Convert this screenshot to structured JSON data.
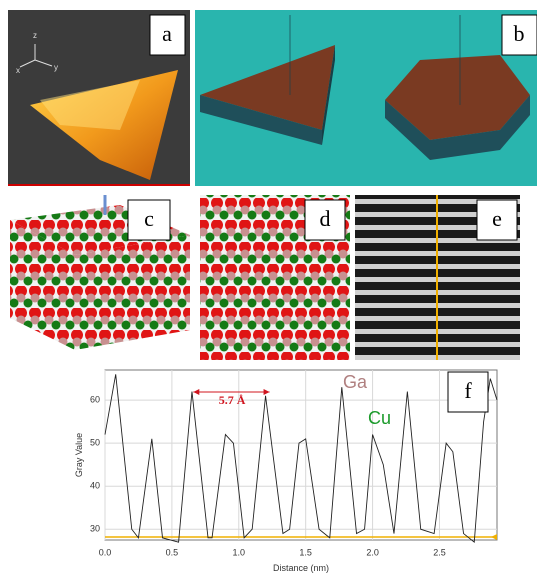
{
  "panels": {
    "labels": [
      "a",
      "b",
      "c",
      "d",
      "e"
    ],
    "a_axes": [
      "z",
      "x",
      "y"
    ]
  },
  "chart_data": {
    "type": "line",
    "label": "f",
    "x_label": "Distance (nm)",
    "y_label": "Gray Value",
    "annotations": {
      "spacing": "5.7 Å",
      "ga": "Ga",
      "cu": "Cu"
    },
    "x": [
      0,
      0.08,
      0.2,
      0.25,
      0.35,
      0.43,
      0.55,
      0.65,
      0.77,
      0.8,
      0.9,
      0.96,
      1.04,
      1.1,
      1.2,
      1.33,
      1.38,
      1.45,
      1.5,
      1.6,
      1.68,
      1.77,
      1.88,
      1.94,
      2.0,
      2.08,
      2.16,
      2.26,
      2.36,
      2.46,
      2.55,
      2.6,
      2.68,
      2.76,
      2.83,
      2.88,
      2.93
    ],
    "series": [
      {
        "color": "#222222",
        "values": [
          52,
          66,
          30,
          28,
          51,
          28,
          27,
          62,
          28,
          28,
          52,
          50,
          28,
          30,
          61,
          29,
          30,
          50,
          51,
          30,
          28,
          63,
          29,
          30,
          52,
          45,
          29,
          62,
          30,
          29,
          50,
          48,
          29,
          27,
          55,
          65,
          60
        ]
      }
    ],
    "xlim": [
      0,
      2.93
    ],
    "ylim": [
      27.5,
      67
    ],
    "xticks": [
      {
        "value": 0,
        "label": "0.0"
      },
      0.5,
      {
        "value": 1,
        "label": "1.0"
      },
      1.5,
      {
        "value": 2,
        "label": "2.0"
      },
      2.5
    ],
    "yticks": [
      30,
      40,
      50,
      60
    ],
    "grid": true
  }
}
